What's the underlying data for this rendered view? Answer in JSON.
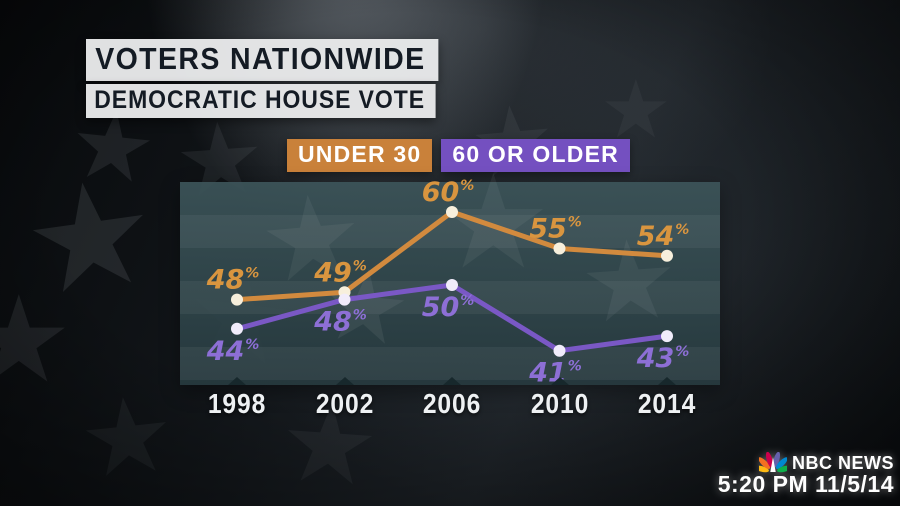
{
  "header": {
    "title": "VOTERS NATIONWIDE",
    "subtitle": "DEMOCRATIC HOUSE VOTE"
  },
  "legend": {
    "items": [
      {
        "label": "UNDER 30",
        "color": "#c9813a"
      },
      {
        "label": "60 OR OLDER",
        "color": "#7450c0"
      }
    ]
  },
  "chart_data": {
    "type": "line",
    "title": "VOTERS NATIONWIDE — DEMOCRATIC HOUSE VOTE",
    "categories": [
      "1998",
      "2002",
      "2006",
      "2010",
      "2014"
    ],
    "unit": "%",
    "series": [
      {
        "name": "UNDER 30",
        "values": [
          48,
          49,
          60,
          55,
          54
        ],
        "color": "#d28a3e",
        "label_color": "#d9953f",
        "point_color": "#f7efdc",
        "label_side": "above"
      },
      {
        "name": "60 OR OLDER",
        "values": [
          44,
          48,
          50,
          41,
          43
        ],
        "color": "#7a58c5",
        "label_color": "#8d6fd6",
        "point_color": "#f1ecfb",
        "label_side": "below"
      }
    ],
    "ylim": [
      36,
      66
    ],
    "grid": false,
    "legend_position": "top",
    "xlabel": "",
    "ylabel": ""
  },
  "footer": {
    "network": "NBC NEWS",
    "timestamp": "5:20 PM 11/5/14"
  }
}
